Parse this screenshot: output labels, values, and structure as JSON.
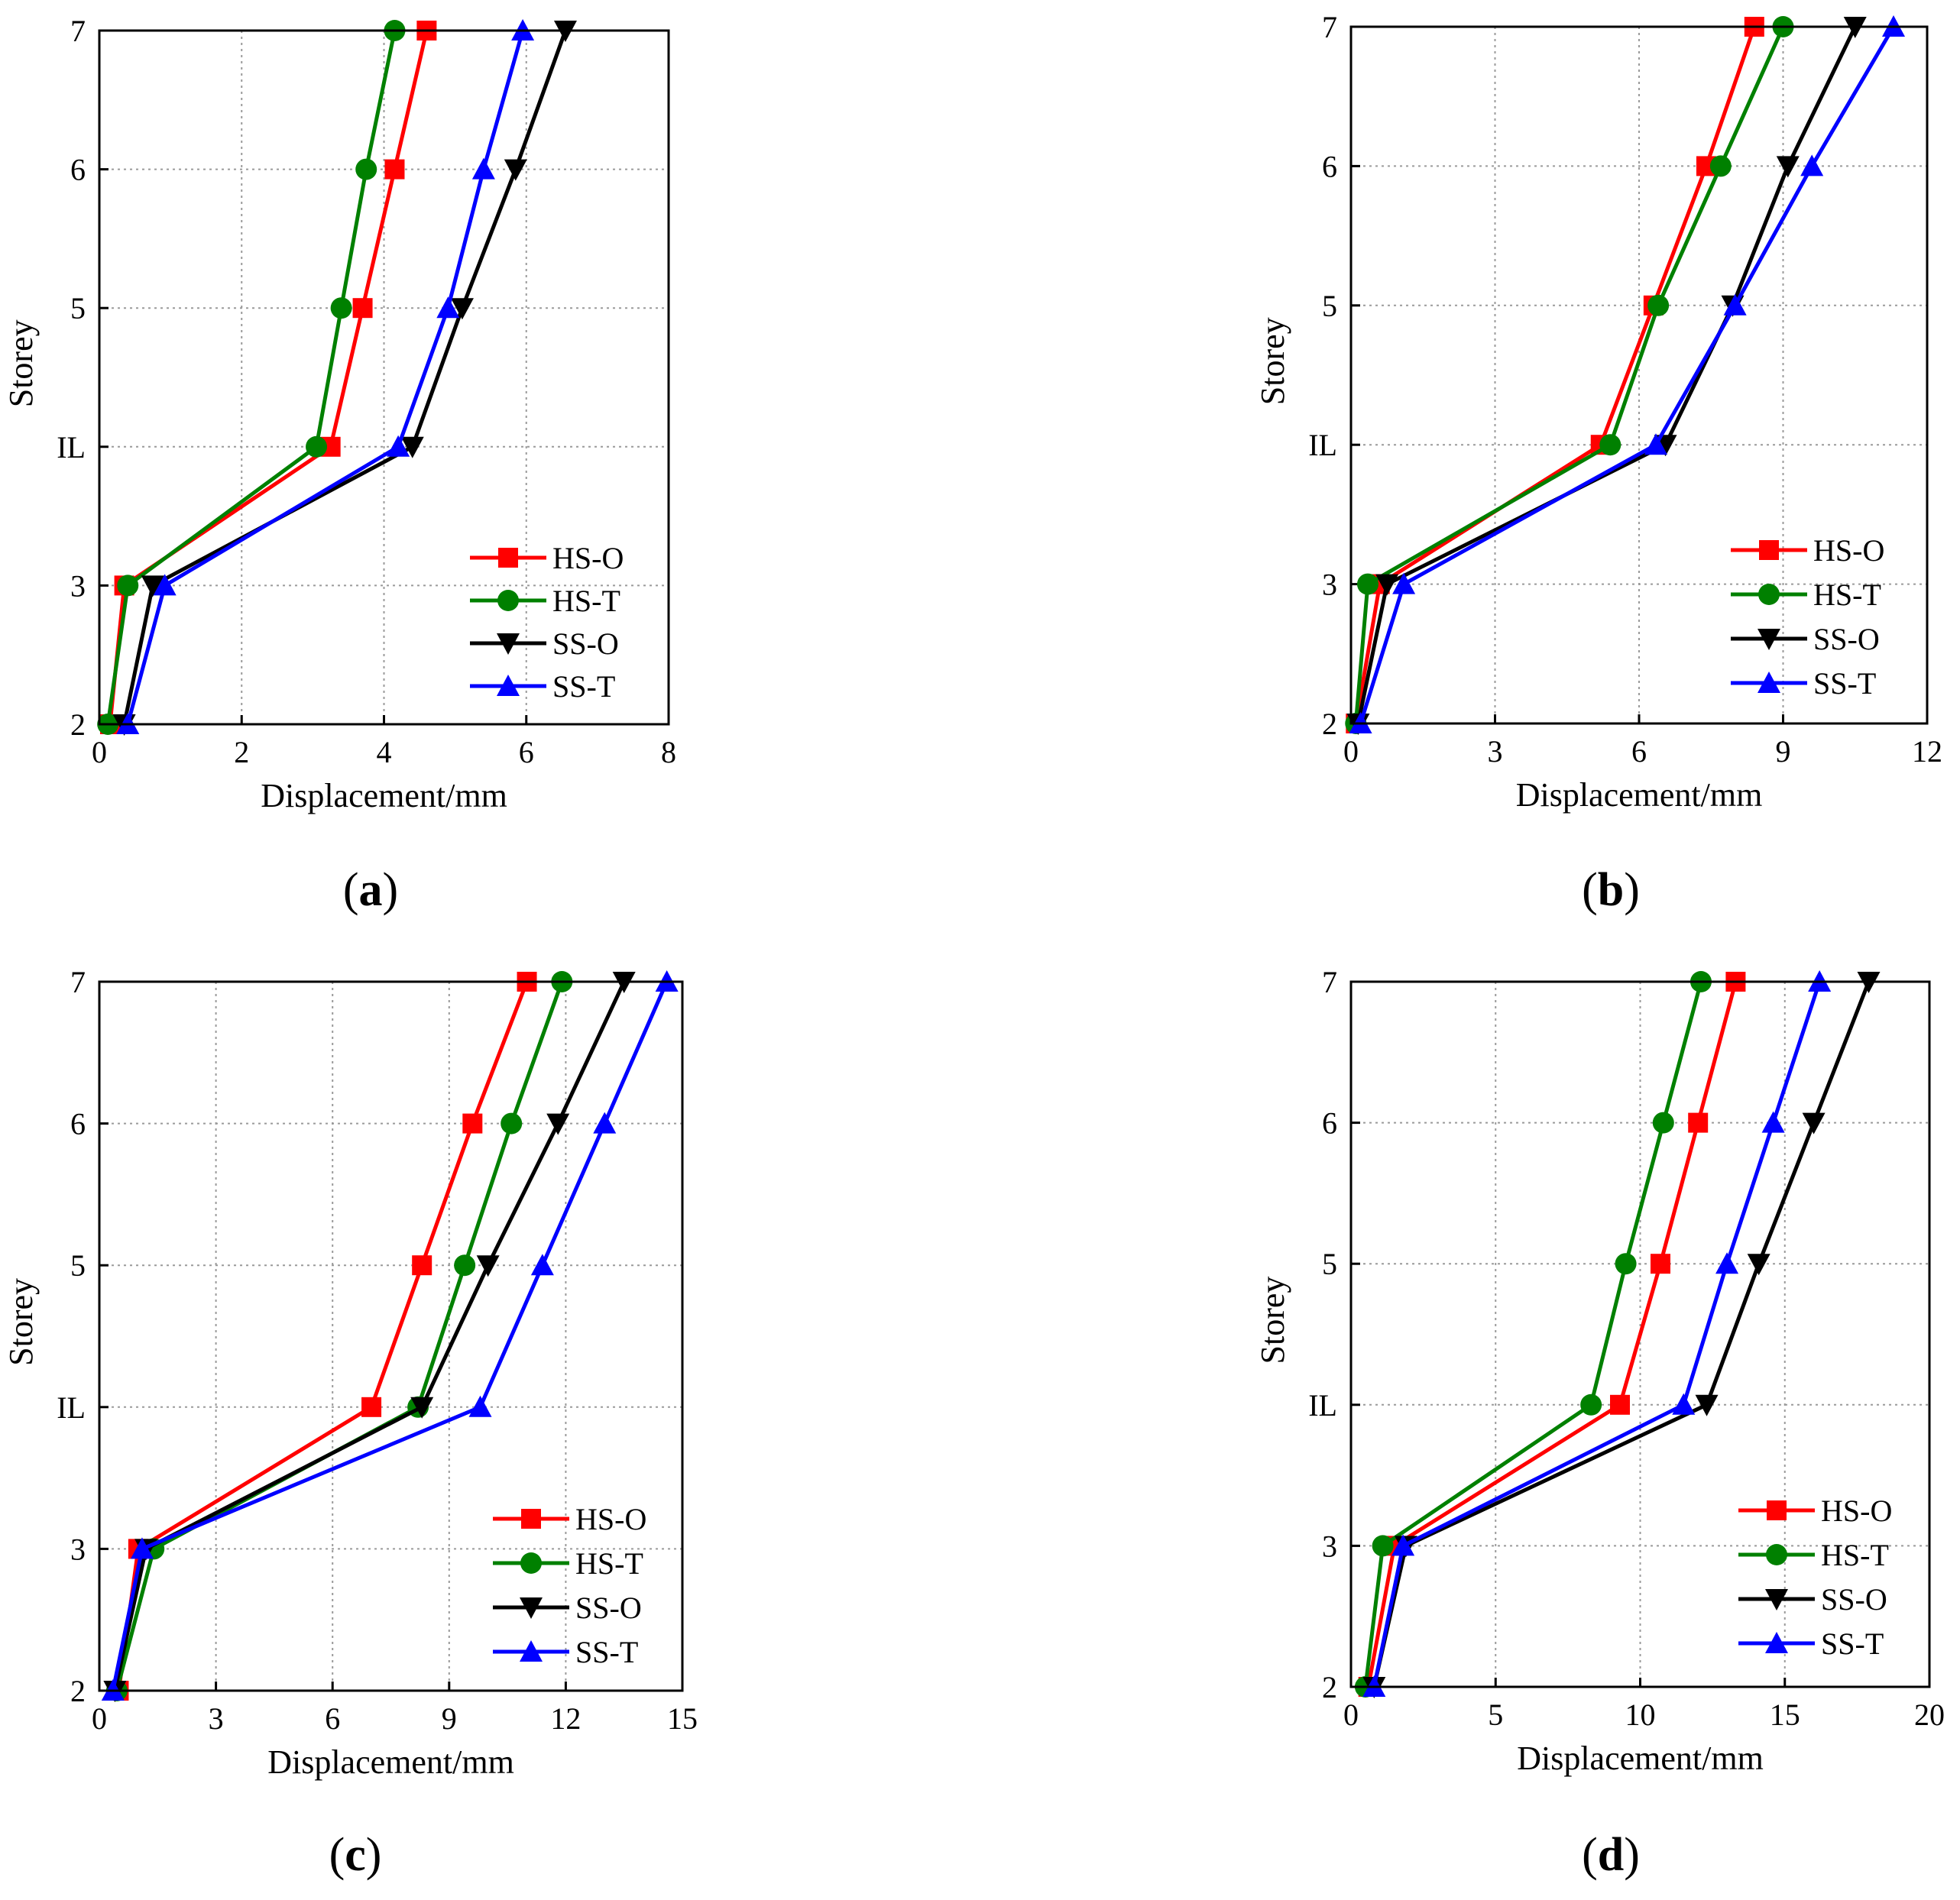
{
  "figure": {
    "panels": [
      {
        "label": "a"
      },
      {
        "label": "b"
      },
      {
        "label": "c"
      },
      {
        "label": "d"
      }
    ]
  },
  "colors": {
    "HS-O": "#ff0000",
    "HS-T": "#008000",
    "SS-O": "#000000",
    "SS-T": "#0000ff"
  },
  "chart_data": [
    {
      "type": "line",
      "panel": "a",
      "title": "",
      "xlabel": "Displacement/mm",
      "ylabel": "Storey",
      "xlim": [
        0,
        8
      ],
      "xticks": [
        0,
        2,
        4,
        6,
        8
      ],
      "y_categories": [
        "2",
        "3",
        "IL",
        "5",
        "6",
        "7"
      ],
      "grid": true,
      "legend_position": "bottom-right",
      "series": [
        {
          "name": "HS-O",
          "marker": "square",
          "values": [
            0.15,
            0.35,
            3.25,
            3.7,
            4.15,
            4.6
          ]
        },
        {
          "name": "HS-T",
          "marker": "circle",
          "values": [
            0.12,
            0.4,
            3.05,
            3.4,
            3.75,
            4.15
          ]
        },
        {
          "name": "SS-O",
          "marker": "triangle-down",
          "values": [
            0.35,
            0.75,
            4.4,
            5.1,
            5.85,
            6.55
          ]
        },
        {
          "name": "SS-T",
          "marker": "triangle-up",
          "values": [
            0.4,
            0.92,
            4.2,
            4.9,
            5.4,
            5.95
          ]
        }
      ]
    },
    {
      "type": "line",
      "panel": "b",
      "title": "",
      "xlabel": "Displacement/mm",
      "ylabel": "Storey",
      "xlim": [
        0,
        12
      ],
      "xticks": [
        0,
        3,
        6,
        9,
        12
      ],
      "y_categories": [
        "2",
        "3",
        "IL",
        "5",
        "6",
        "7"
      ],
      "grid": true,
      "legend_position": "bottom-right",
      "series": [
        {
          "name": "HS-O",
          "marker": "square",
          "values": [
            0.1,
            0.6,
            5.2,
            6.3,
            7.4,
            8.4
          ]
        },
        {
          "name": "HS-T",
          "marker": "circle",
          "values": [
            0.1,
            0.35,
            5.4,
            6.4,
            7.7,
            9.0
          ]
        },
        {
          "name": "SS-O",
          "marker": "triangle-down",
          "values": [
            0.15,
            0.75,
            6.55,
            7.95,
            9.1,
            10.5
          ]
        },
        {
          "name": "SS-T",
          "marker": "triangle-up",
          "values": [
            0.2,
            1.1,
            6.35,
            8.0,
            9.6,
            11.3
          ]
        }
      ]
    },
    {
      "type": "line",
      "panel": "c",
      "title": "",
      "xlabel": "Displacement/mm",
      "ylabel": "Storey",
      "xlim": [
        0,
        15
      ],
      "xticks": [
        0,
        3,
        6,
        9,
        12,
        15
      ],
      "y_categories": [
        "2",
        "3",
        "IL",
        "5",
        "6",
        "7"
      ],
      "grid": true,
      "legend_position": "bottom-right",
      "series": [
        {
          "name": "HS-O",
          "marker": "square",
          "values": [
            0.5,
            1.0,
            7.0,
            8.3,
            9.6,
            11.0
          ]
        },
        {
          "name": "HS-T",
          "marker": "circle",
          "values": [
            0.45,
            1.4,
            8.2,
            9.4,
            10.6,
            11.9
          ]
        },
        {
          "name": "SS-O",
          "marker": "triangle-down",
          "values": [
            0.4,
            1.2,
            8.3,
            10.0,
            11.8,
            13.5
          ]
        },
        {
          "name": "SS-T",
          "marker": "triangle-up",
          "values": [
            0.35,
            1.1,
            9.8,
            11.4,
            13.0,
            14.6
          ]
        }
      ]
    },
    {
      "type": "line",
      "panel": "d",
      "title": "",
      "xlabel": "Displacement/mm",
      "ylabel": "Storey",
      "xlim": [
        0,
        20
      ],
      "xticks": [
        0,
        5,
        10,
        15,
        20
      ],
      "y_categories": [
        "2",
        "3",
        "IL",
        "5",
        "6",
        "7"
      ],
      "grid": true,
      "legend_position": "bottom-right",
      "series": [
        {
          "name": "HS-O",
          "marker": "square",
          "values": [
            0.6,
            1.5,
            9.3,
            10.7,
            12.0,
            13.3
          ]
        },
        {
          "name": "HS-T",
          "marker": "circle",
          "values": [
            0.5,
            1.1,
            8.3,
            9.5,
            10.8,
            12.1
          ]
        },
        {
          "name": "SS-O",
          "marker": "triangle-down",
          "values": [
            0.8,
            1.9,
            12.3,
            14.1,
            16.0,
            17.9
          ]
        },
        {
          "name": "SS-T",
          "marker": "triangle-up",
          "values": [
            0.8,
            1.8,
            11.5,
            13.0,
            14.6,
            16.2
          ]
        }
      ]
    }
  ]
}
